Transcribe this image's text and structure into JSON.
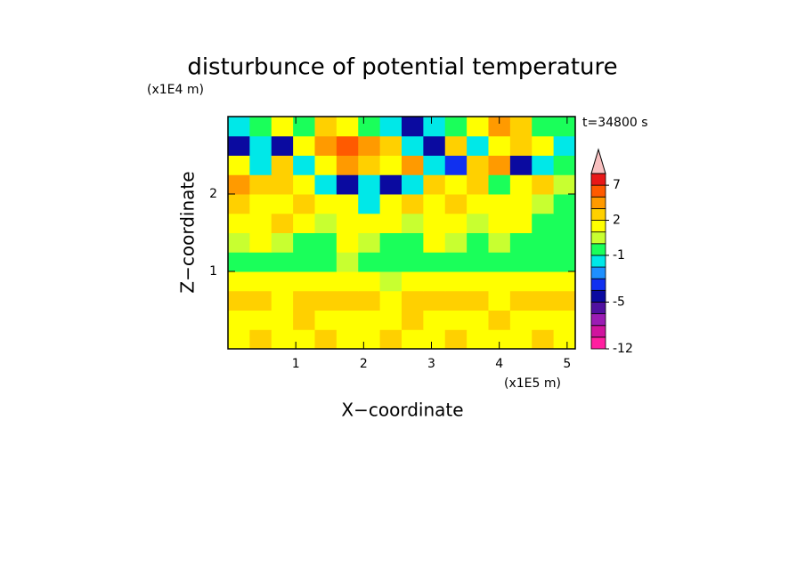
{
  "chart_data": {
    "type": "heatmap",
    "title": "disturbunce of potential temperature",
    "x_label": "X−coordinate",
    "y_label": "Z−coordinate",
    "x_unit": "(x1E5 m)",
    "y_unit": "(x1E4 m)",
    "annotation": "t=34800 s",
    "xlim": [
      0,
      5.12
    ],
    "ylim": [
      0,
      3
    ],
    "xticks": [
      1,
      2,
      3,
      4,
      5
    ],
    "yticks": [
      1,
      2
    ],
    "x_edges": [
      0,
      0.32,
      0.64,
      0.96,
      1.28,
      1.6,
      1.92,
      2.24,
      2.56,
      2.88,
      3.2,
      3.52,
      3.84,
      4.16,
      4.48,
      4.8,
      5.12
    ],
    "y_edges": [
      0,
      0.25,
      0.5,
      0.75,
      1.0,
      1.25,
      1.5,
      1.75,
      2.0,
      2.25,
      2.5,
      2.75,
      3.0
    ],
    "values": [
      [
        1.5,
        2.5,
        1.5,
        1.5,
        2.5,
        1.5,
        1.5,
        2.5,
        1.5,
        1.5,
        2.5,
        1.5,
        1.5,
        1.5,
        2.5,
        1.5
      ],
      [
        1.5,
        1.5,
        1.5,
        2.5,
        1.5,
        1.5,
        1.5,
        1.5,
        2.5,
        1.5,
        1.5,
        1.5,
        2.5,
        1.5,
        1.5,
        1.5
      ],
      [
        2.5,
        2.5,
        1.5,
        2.5,
        2.5,
        2.5,
        2.5,
        1.5,
        2.5,
        2.5,
        2.5,
        2.5,
        1.5,
        2.5,
        2.5,
        2.5
      ],
      [
        1.5,
        1.5,
        1.5,
        1.5,
        1.5,
        1.5,
        1.5,
        0.5,
        1.5,
        1.5,
        1.5,
        1.5,
        1.5,
        1.5,
        1.5,
        1.5
      ],
      [
        -0.5,
        -0.5,
        -0.5,
        -0.5,
        -0.5,
        0.5,
        -0.5,
        -0.5,
        -0.5,
        -0.5,
        -0.5,
        -0.5,
        -0.5,
        -0.5,
        -0.5,
        -0.5
      ],
      [
        0.5,
        1.5,
        0.5,
        -0.5,
        -0.5,
        1.5,
        0.5,
        -0.5,
        -0.5,
        1.5,
        0.5,
        -0.5,
        0.5,
        -0.5,
        -0.5,
        -0.5
      ],
      [
        1.5,
        1.5,
        2.5,
        1.5,
        0.5,
        1.5,
        1.5,
        1.5,
        0.5,
        1.5,
        1.5,
        0.5,
        1.5,
        1.5,
        -0.5,
        -0.5
      ],
      [
        2.5,
        1.5,
        1.5,
        2.5,
        1.5,
        1.5,
        -1.5,
        1.5,
        2.5,
        1.5,
        2.5,
        1.5,
        1.5,
        1.5,
        0.5,
        -0.5
      ],
      [
        4,
        2.5,
        2.5,
        1.5,
        -1.5,
        -4.5,
        -1.5,
        -4.5,
        -1.5,
        2.5,
        1.5,
        2.5,
        -0.5,
        1.5,
        2.5,
        0.5
      ],
      [
        1.5,
        -1.5,
        2.5,
        -1.5,
        1.5,
        4,
        2.5,
        1.5,
        4,
        -1.5,
        -3.5,
        2.5,
        4,
        -4.5,
        -1.5,
        -0.5
      ],
      [
        -4.5,
        -1.5,
        -4.5,
        1.5,
        4,
        6,
        4,
        2.5,
        -1.5,
        -4.5,
        2.5,
        -1.5,
        1.5,
        2.5,
        1.5,
        -1.5
      ],
      [
        -1.5,
        -0.5,
        1.5,
        -0.5,
        2.5,
        1.5,
        -0.5,
        -1.5,
        -4.5,
        -1.5,
        -0.5,
        1.5,
        4,
        2.5,
        -0.5,
        -0.5
      ]
    ],
    "colorbar": {
      "levels": [
        -12,
        -10,
        -8,
        -6,
        -5,
        -4,
        -3,
        -2,
        -1,
        0,
        1,
        2,
        3,
        5,
        7,
        9
      ],
      "colors": [
        "#ff1fa0",
        "#d0149e",
        "#9b1cb4",
        "#5010a0",
        "#0a0aa0",
        "#1030f0",
        "#1e90ff",
        "#00e8e8",
        "#1aff5a",
        "#c8ff30",
        "#ffff00",
        "#ffd000",
        "#ff9a00",
        "#ff5a00",
        "#e81818"
      ],
      "extend_color": "#f8c0c0",
      "ticks": [
        7,
        2,
        -1,
        -5,
        -12
      ]
    }
  }
}
